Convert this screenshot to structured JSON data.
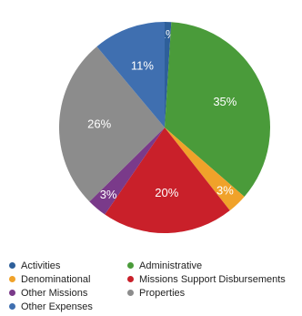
{
  "chart_data": {
    "type": "pie",
    "title": "",
    "slices": [
      {
        "name": "Activities",
        "value": 1,
        "label": "1%",
        "color": "#2e5f9a"
      },
      {
        "name": "Administrative",
        "value": 35,
        "label": "35%",
        "color": "#4a9b3a"
      },
      {
        "name": "Denominational",
        "value": 3,
        "label": "3%",
        "color": "#f0a22a"
      },
      {
        "name": "Missions Support Disbursements",
        "value": 20,
        "label": "20%",
        "color": "#c9202a"
      },
      {
        "name": "Other Missions",
        "value": 3,
        "label": "3%",
        "color": "#7a3a8a"
      },
      {
        "name": "Properties",
        "value": 26,
        "label": "26%",
        "color": "#8c8c8c"
      },
      {
        "name": "Other Expenses",
        "value": 11,
        "label": "11%",
        "color": "#3f6fb0"
      }
    ],
    "legend_position": "bottom",
    "legend": [
      {
        "name": "Activities",
        "color": "#2e5f9a"
      },
      {
        "name": "Administrative",
        "color": "#4a9b3a"
      },
      {
        "name": "Denominational",
        "color": "#f0a22a"
      },
      {
        "name": "Missions Support Disbursements",
        "color": "#c9202a"
      },
      {
        "name": "Other Missions",
        "color": "#7a3a8a"
      },
      {
        "name": "Properties",
        "color": "#8c8c8c"
      },
      {
        "name": "Other Expenses",
        "color": "#3f6fb0"
      }
    ]
  }
}
